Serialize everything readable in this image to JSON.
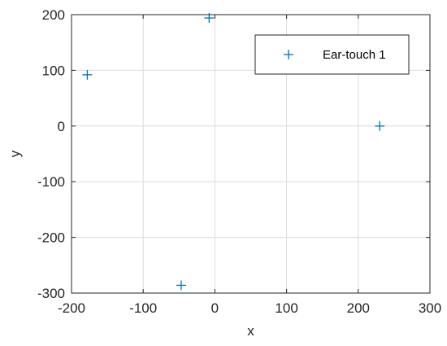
{
  "chart_data": {
    "type": "scatter",
    "title": "",
    "xlabel": "x",
    "ylabel": "y",
    "xlim": [
      -200,
      300
    ],
    "ylim": [
      -300,
      200
    ],
    "xticks": [
      -200,
      -100,
      0,
      100,
      200,
      300
    ],
    "yticks": [
      -300,
      -200,
      -100,
      0,
      100,
      200
    ],
    "grid": true,
    "legend_position": "top-right",
    "series": [
      {
        "name": "Ear-touch 1",
        "marker": "plus",
        "color": "#0072bd",
        "x": [
          -178,
          -8,
          230,
          -47
        ],
        "y": [
          92,
          194,
          0,
          -286
        ]
      }
    ]
  }
}
